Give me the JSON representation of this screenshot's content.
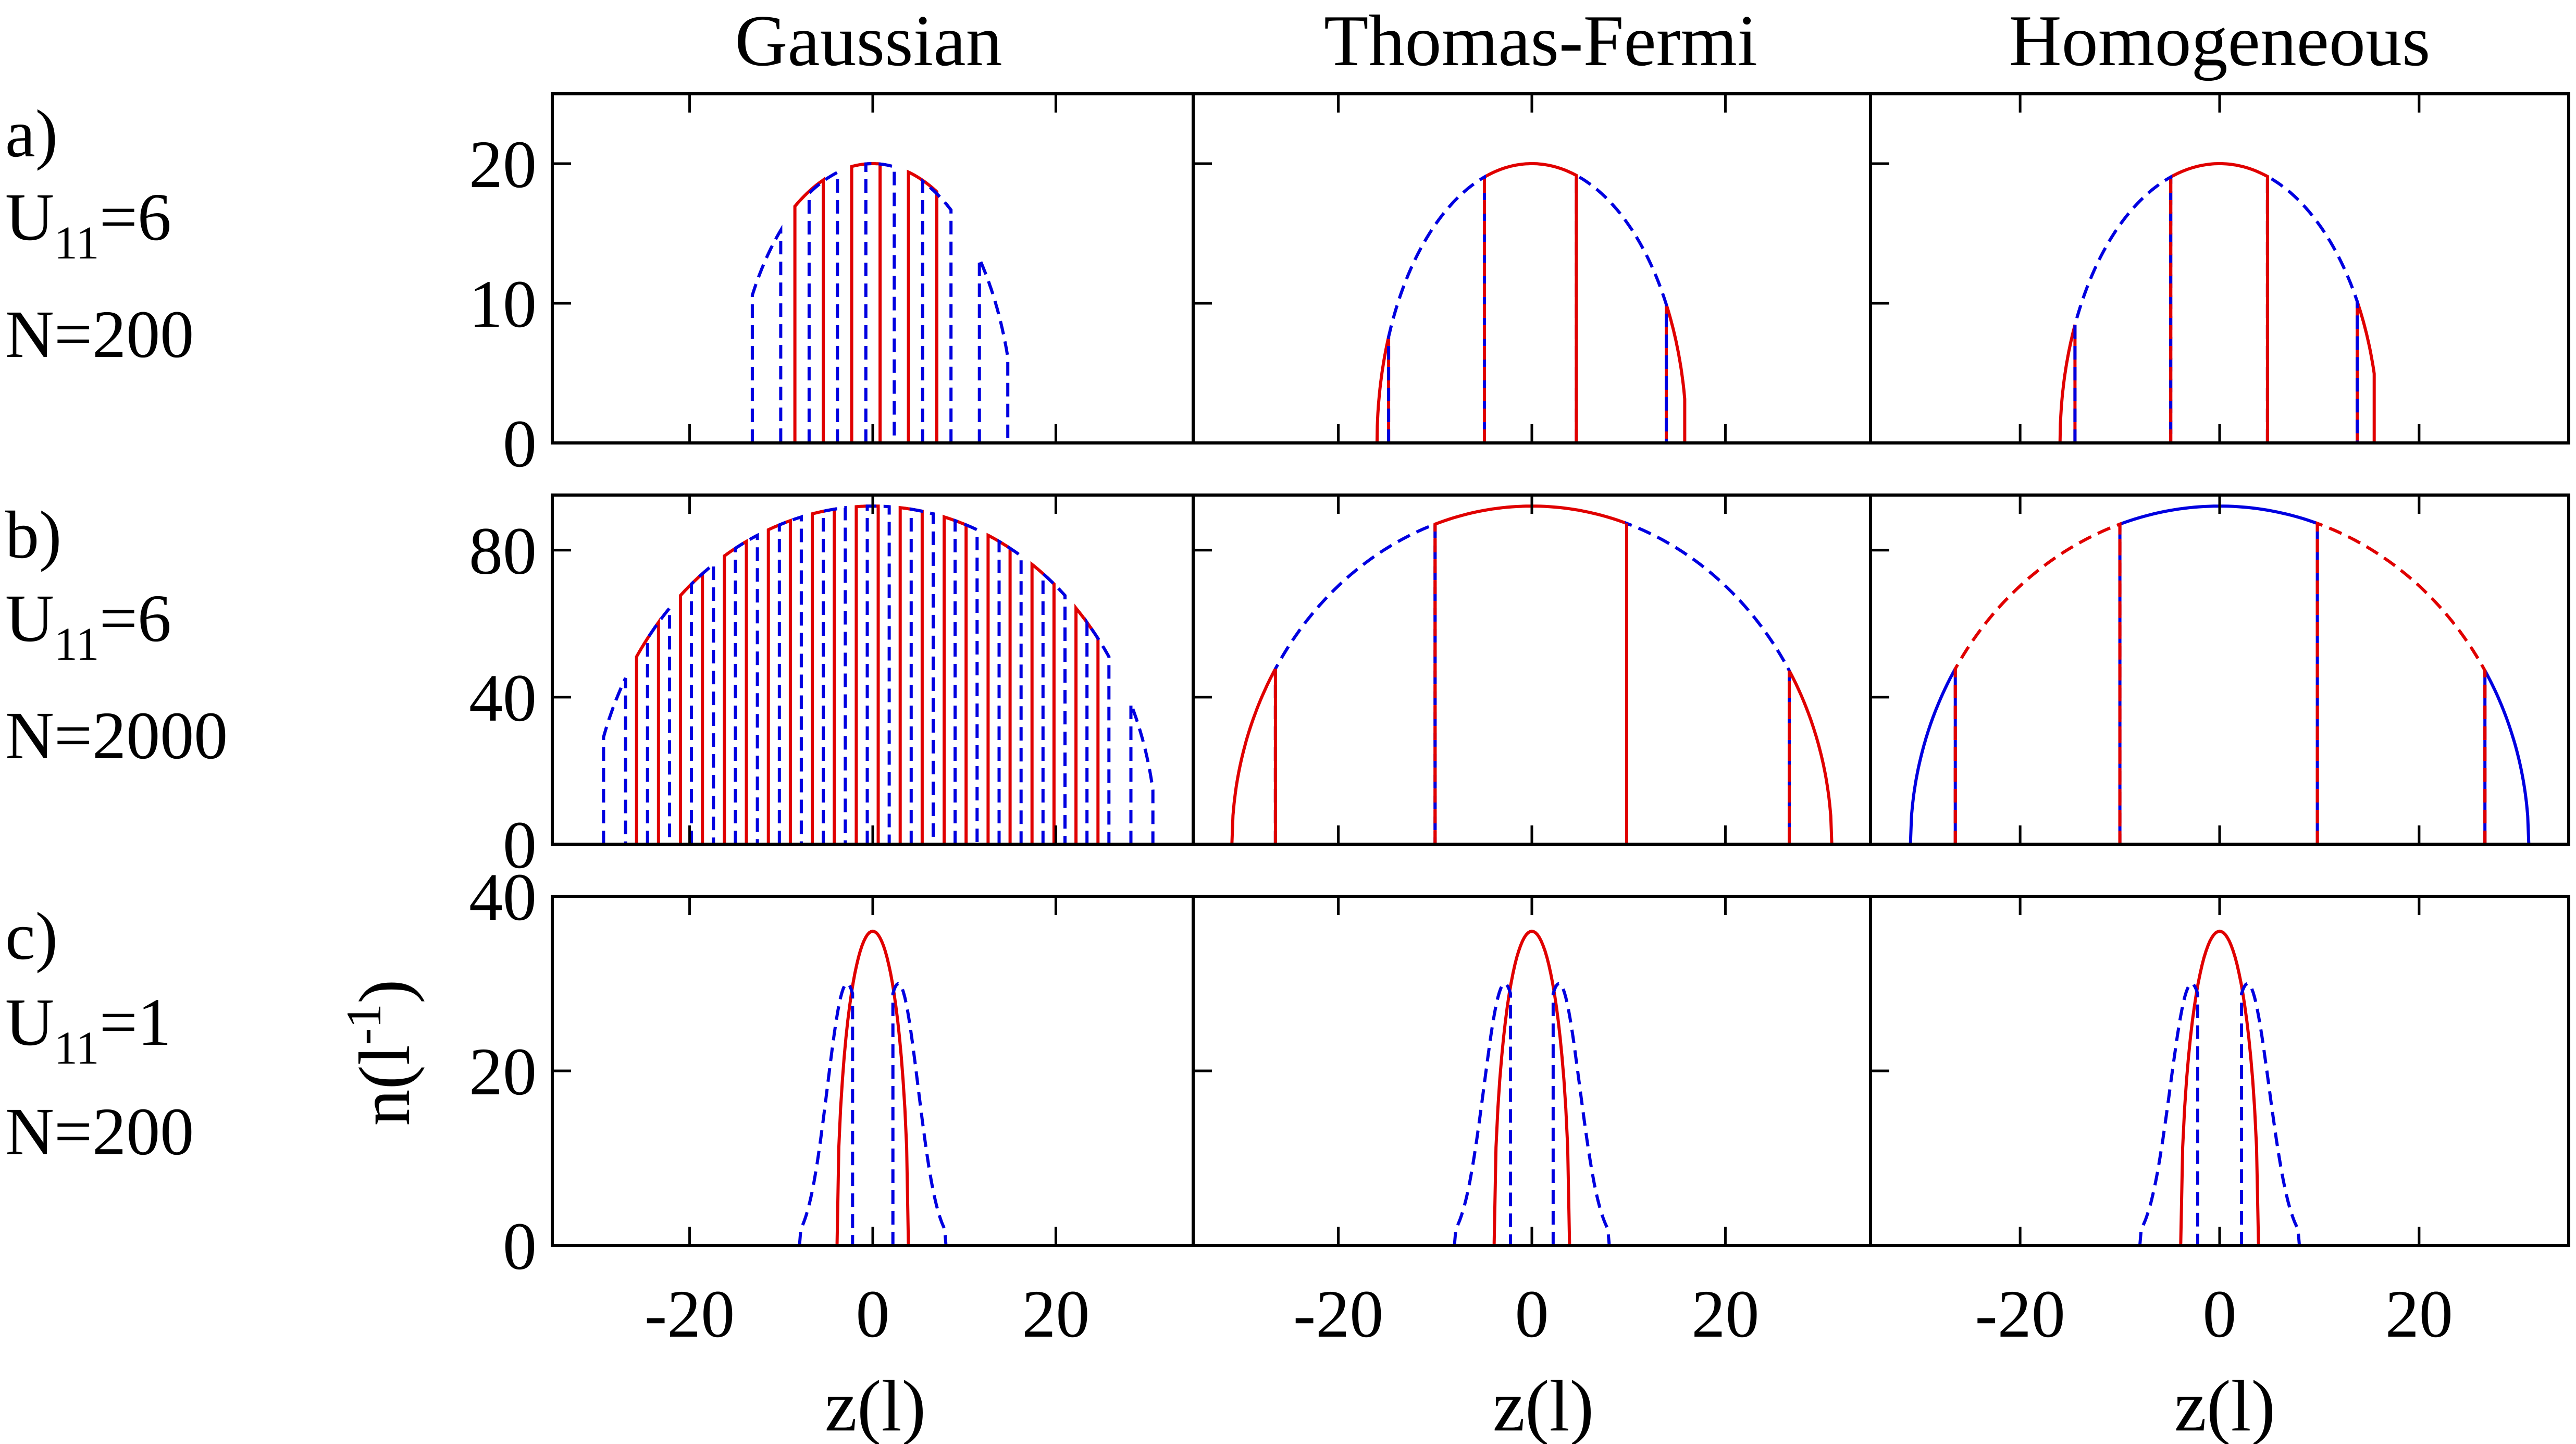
{
  "chart_data": {
    "type": "line",
    "columns": [
      "Gaussian",
      "Thomas-Fermi",
      "Homogeneous"
    ],
    "rows": [
      {
        "tag": "a)",
        "u": {
          "base": "U",
          "sub": "11",
          "value": "=6"
        },
        "n": "N=200",
        "ylim": [
          0,
          25
        ],
        "yticks": [
          0,
          10,
          20
        ],
        "ytick_labels": [
          "0",
          "10",
          "20"
        ]
      },
      {
        "tag": "b)",
        "u": {
          "base": "U",
          "sub": "11",
          "value": "=6"
        },
        "n": "N=2000",
        "ylim": [
          0,
          95
        ],
        "yticks": [
          0,
          40,
          80
        ],
        "ytick_labels": [
          "0",
          "40",
          "80"
        ]
      },
      {
        "tag": "c)",
        "u": {
          "base": "U",
          "sub": "11",
          "value": "=1"
        },
        "n": "N=200",
        "ylim": [
          0,
          40
        ],
        "yticks": [
          0,
          20,
          40
        ],
        "ytick_labels": [
          "0",
          "20",
          "40"
        ]
      }
    ],
    "xlim": [
      -35,
      35
    ],
    "xticks": [
      -20,
      0,
      20
    ],
    "xtick_labels": [
      "-20",
      "0",
      "20"
    ],
    "xlabel": "z(l)",
    "ylabel": {
      "base": "n(l",
      "sup": "-1",
      "close": ")"
    },
    "colors": {
      "red": "#e00000",
      "blue": "#0000e0"
    },
    "panels": [
      {
        "row": 0,
        "col": 0,
        "series": [
          {
            "color": "red",
            "dash": false,
            "mode": "stripes",
            "amp": 20,
            "R": 16,
            "stripe": 3.1,
            "off": 0.8,
            "support": [
              -11.5,
              9.5
            ]
          },
          {
            "color": "blue",
            "dash": true,
            "mode": "stripes",
            "amp": 20,
            "R": 15.5,
            "stripe": 3.1,
            "off": 2.35,
            "support": [
              -16,
              15
            ]
          }
        ]
      },
      {
        "row": 0,
        "col": 1,
        "series": [
          {
            "color": "red",
            "dash": false,
            "mode": "ranges",
            "amp": 20,
            "R": 16,
            "ranges": [
              [
                -16,
                -14.8
              ],
              [
                -4.9,
                4.6
              ],
              [
                13.9,
                15.8
              ]
            ]
          },
          {
            "color": "blue",
            "dash": true,
            "mode": "ranges",
            "amp": 20,
            "R": 16,
            "ranges": [
              [
                -14.8,
                -4.9
              ],
              [
                4.6,
                13.9
              ]
            ]
          },
          {
            "color": "red",
            "dash": true,
            "mode": "vlines",
            "amp": 20,
            "R": 16,
            "x": [
              -4.9,
              4.6
            ]
          }
        ]
      },
      {
        "row": 0,
        "col": 2,
        "series": [
          {
            "color": "red",
            "dash": false,
            "mode": "ranges",
            "amp": 20,
            "R": 16,
            "ranges": [
              [
                -16,
                -14.5
              ],
              [
                -4.9,
                4.8
              ],
              [
                13.8,
                15.5
              ]
            ]
          },
          {
            "color": "blue",
            "dash": true,
            "mode": "ranges",
            "amp": 20,
            "R": 16,
            "ranges": [
              [
                -14.5,
                -4.9
              ],
              [
                4.8,
                13.8
              ]
            ]
          },
          {
            "color": "red",
            "dash": true,
            "mode": "vlines",
            "amp": 20,
            "R": 16,
            "x": [
              -4.9,
              4.8
            ]
          }
        ]
      },
      {
        "row": 1,
        "col": 0,
        "series": [
          {
            "color": "red",
            "dash": false,
            "mode": "stripes",
            "amp": 92,
            "R": 31,
            "stripe": 2.4,
            "off": 0.6,
            "support": [
              -27.5,
              26.5
            ]
          },
          {
            "color": "blue",
            "dash": true,
            "mode": "stripes",
            "amp": 92,
            "R": 31,
            "stripe": 2.4,
            "off": 1.8,
            "support": [
              -31,
              31
            ]
          }
        ]
      },
      {
        "row": 1,
        "col": 1,
        "series": [
          {
            "color": "red",
            "dash": false,
            "mode": "ranges",
            "amp": 92,
            "R": 31,
            "ranges": [
              [
                -31,
                -26.5
              ],
              [
                -10,
                9.8
              ],
              [
                26.6,
                31
              ]
            ]
          },
          {
            "color": "blue",
            "dash": true,
            "mode": "ranges",
            "amp": 92,
            "R": 31,
            "ranges": [
              [
                -26.5,
                -10
              ],
              [
                9.8,
                26.6
              ]
            ]
          },
          {
            "color": "red",
            "dash": true,
            "mode": "vlines",
            "amp": 92,
            "R": 31,
            "x": [
              -26.5,
              -10,
              9.8,
              26.6
            ]
          }
        ]
      },
      {
        "row": 1,
        "col": 2,
        "series": [
          {
            "color": "blue",
            "dash": false,
            "mode": "ranges",
            "amp": 92,
            "R": 31,
            "ranges": [
              [
                -31,
                -26.5
              ],
              [
                -10,
                9.8
              ],
              [
                26.6,
                31
              ]
            ]
          },
          {
            "color": "red",
            "dash": true,
            "mode": "ranges",
            "amp": 92,
            "R": 31,
            "ranges": [
              [
                -26.5,
                -10
              ],
              [
                9.8,
                26.6
              ]
            ]
          },
          {
            "color": "red",
            "dash": true,
            "mode": "vlines",
            "amp": 92,
            "R": 31,
            "x": [
              -26.5,
              -10,
              9.8,
              26.6
            ]
          }
        ]
      },
      {
        "row": 2,
        "col": 0,
        "series": [
          {
            "color": "red",
            "dash": false,
            "mode": "ranges",
            "amp": 36,
            "R": 3.9,
            "ranges": [
              [
                -3.9,
                3.9
              ]
            ]
          },
          {
            "color": "blue",
            "dash": true,
            "mode": "ranges",
            "amp": 30,
            "R": 8,
            "peak": 2.8,
            "ranges": [
              [
                -8,
                -2.2
              ],
              [
                2.2,
                8
              ]
            ]
          }
        ]
      },
      {
        "row": 2,
        "col": 1,
        "series": [
          {
            "color": "red",
            "dash": false,
            "mode": "ranges",
            "amp": 36,
            "R": 3.9,
            "ranges": [
              [
                -3.9,
                3.9
              ]
            ]
          },
          {
            "color": "blue",
            "dash": true,
            "mode": "ranges",
            "amp": 30,
            "R": 8,
            "peak": 2.8,
            "ranges": [
              [
                -8,
                -2.2
              ],
              [
                2.2,
                8
              ]
            ]
          }
        ]
      },
      {
        "row": 2,
        "col": 2,
        "series": [
          {
            "color": "red",
            "dash": false,
            "mode": "ranges",
            "amp": 36,
            "R": 3.9,
            "ranges": [
              [
                -3.9,
                3.9
              ]
            ]
          },
          {
            "color": "blue",
            "dash": true,
            "mode": "ranges",
            "amp": 30,
            "R": 8,
            "peak": 2.8,
            "ranges": [
              [
                -8,
                -2.2
              ],
              [
                2.2,
                8
              ]
            ]
          }
        ]
      }
    ]
  }
}
